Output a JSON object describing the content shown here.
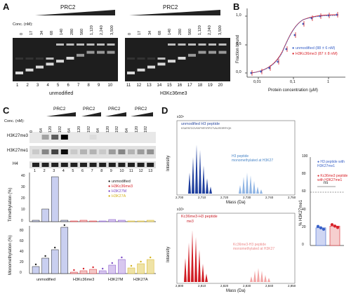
{
  "panels": {
    "a": "A",
    "b": "B",
    "c": "C",
    "d": "D"
  },
  "a": {
    "prc2": [
      "PRC2",
      "PRC2"
    ],
    "conc_label": "Conc. (nM):",
    "concs": [
      "0",
      "17",
      "34",
      "68",
      "140",
      "280",
      "560",
      "1,120",
      "2,240",
      "3,500"
    ],
    "lanes_left": [
      "1",
      "2",
      "3",
      "4",
      "5",
      "6",
      "7",
      "8",
      "9",
      "10"
    ],
    "lanes_right": [
      "11",
      "12",
      "13",
      "14",
      "15",
      "16",
      "17",
      "18",
      "19",
      "20"
    ],
    "cap_left": "unmodified",
    "cap_right": "H3Kc36me3"
  },
  "b": {
    "ylabel": "Fraction bound",
    "xlabel": "Protein concentration (µM)",
    "yticks": [
      "0,0",
      "0,5",
      "1,0"
    ],
    "xticks": [
      "0,01",
      "0,1",
      "1"
    ],
    "legend": [
      "unmodified (88 ± 6 nM)",
      "H3Kc36me3 (87 ± 8 nM)"
    ],
    "colors": {
      "unmod": "#3a62c8",
      "me3": "#d8232a"
    }
  },
  "c": {
    "prc2": [
      "PRC2",
      "PRC2",
      "PRC2",
      "PRC2"
    ],
    "conc_label": "Conc. (nM):",
    "concs": [
      "0",
      "64",
      "120",
      "192",
      "64",
      "120",
      "192",
      "64",
      "120",
      "192",
      "64",
      "120",
      "192"
    ],
    "bands": [
      "H3K27me3",
      "H3K27me1",
      "H4"
    ],
    "lanes": [
      "1",
      "2",
      "3",
      "4",
      "5",
      "6",
      "7",
      "8",
      "9",
      "10",
      "11",
      "12",
      "13"
    ],
    "ylabel_top": "Trimethylation (%)",
    "ylabel_bot": "Monomethylation (%)",
    "ticks_top": [
      "0",
      "10",
      "20",
      "30",
      "40"
    ],
    "ticks_bot": [
      "0",
      "20",
      "40",
      "60",
      "80"
    ],
    "legend": [
      "unmodified",
      "H3Kc36me3",
      "H3K27M",
      "H3K27A"
    ],
    "legend_colors": [
      "#222222",
      "#d8232a",
      "#7b49c6",
      "#d4b21c"
    ],
    "groups": [
      "unmodified",
      "H3Kc36me3",
      "H3K27M",
      "H3K27A"
    ]
  },
  "d": {
    "scale1": "x10⁴",
    "scale2": "x10⁴",
    "title1": "unmodified H3",
    "title1b": "peptide",
    "seq1": "KSAPATGGVKKPHRYRPGTVALREIRRYQK",
    "mono1a": "H3",
    "mono1b": "peptide",
    "mono1c": "monomethylated at H3K27",
    "ylabel": "Intensity",
    "xlabel": "Mass (Da)",
    "title2": "Kc36me3-H3",
    "title2b": "peptide",
    "mono2a": "Kc36me3-H3",
    "mono2b": "peptide",
    "mono2c": "monomethylated at H3K27",
    "me3": "me3",
    "me1": "me1",
    "xticks1": [
      "2,700",
      "2,710",
      "2,720",
      "2,730",
      "2,740",
      "2,750"
    ],
    "xticks2": [
      "2,800",
      "2,810",
      "2,820",
      "2,830",
      "2,840",
      "2,850"
    ],
    "bar_ylabel": "% H3K27me1",
    "bar_ticks": [
      "0",
      "20",
      "40",
      "60",
      "80",
      "100"
    ],
    "ns": "ns",
    "bar_legend": [
      "H3 peptide with H3K27me1",
      "Kc36me3 peptide with H3K27me1"
    ],
    "bar_colors": [
      "#3a62c8",
      "#d8232a"
    ],
    "bar_values": [
      20,
      22
    ]
  }
}
